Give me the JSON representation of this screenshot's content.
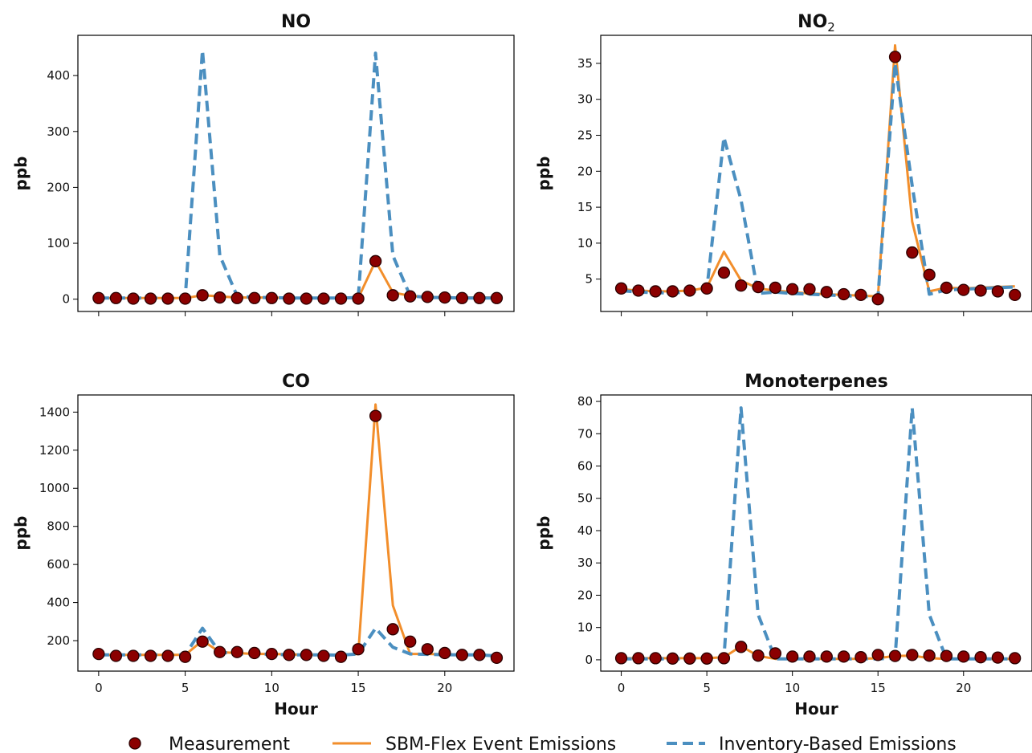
{
  "chart_data": {
    "type": "line",
    "x": [
      0,
      1,
      2,
      3,
      4,
      5,
      6,
      7,
      8,
      9,
      10,
      11,
      12,
      13,
      14,
      15,
      16,
      17,
      18,
      19,
      20,
      21,
      22,
      23
    ],
    "legend": {
      "placement": "bottom-center",
      "entries": [
        {
          "label": "Measurement",
          "style": "markers",
          "color": "#8b0000",
          "edge_color": "#2a0000"
        },
        {
          "label": "SBM-Flex Event Emissions",
          "style": "solid",
          "color": "#f28e2b"
        },
        {
          "label": "Inventory-Based Emissions",
          "style": "dashed",
          "color": "#4b8fc0"
        }
      ]
    },
    "panels": [
      {
        "title": "NO",
        "title_subscript": "",
        "xlabel": "",
        "ylabel": "ppb",
        "xlim": [
          -1.2,
          24
        ],
        "xticks": [
          0,
          5,
          10,
          15,
          20
        ],
        "show_xtick_labels": false,
        "ylim": [
          -22,
          472
        ],
        "yticks": [
          0,
          100,
          200,
          300,
          400
        ],
        "series": {
          "measurement": [
            2,
            2,
            1,
            1,
            1,
            1,
            7,
            3,
            2,
            2,
            2,
            1,
            1,
            1,
            1,
            1,
            68,
            7,
            5,
            4,
            3,
            2,
            2,
            2
          ],
          "sbm": [
            2,
            2,
            2,
            2,
            2,
            2,
            7,
            5,
            3,
            3,
            3,
            2,
            2,
            2,
            2,
            2,
            68,
            12,
            6,
            4,
            3,
            3,
            3,
            3
          ],
          "inventory": [
            2,
            2,
            2,
            2,
            2,
            2,
            445,
            78,
            6,
            3,
            3,
            2,
            2,
            2,
            2,
            3,
            440,
            78,
            6,
            3,
            3,
            2,
            2,
            2
          ]
        }
      },
      {
        "title": "NO",
        "title_subscript": "2",
        "xlabel": "",
        "ylabel": "ppb",
        "xlim": [
          -1.2,
          24
        ],
        "xticks": [
          0,
          5,
          10,
          15,
          20
        ],
        "show_xtick_labels": false,
        "ylim": [
          0.5,
          38.9
        ],
        "yticks": [
          5,
          10,
          15,
          20,
          25,
          30,
          35
        ],
        "series": {
          "measurement": [
            3.7,
            3.4,
            3.3,
            3.3,
            3.4,
            3.7,
            5.9,
            4.1,
            3.9,
            3.8,
            3.6,
            3.6,
            3.2,
            2.9,
            2.8,
            2.2,
            35.9,
            8.7,
            5.6,
            3.8,
            3.5,
            3.4,
            3.3,
            2.8
          ],
          "sbm": [
            3.6,
            3.4,
            3.3,
            3.3,
            3.4,
            3.8,
            8.8,
            4.8,
            3.7,
            3.4,
            3.2,
            3.0,
            2.9,
            2.8,
            2.7,
            2.6,
            37.5,
            13.0,
            3.3,
            3.8,
            3.7,
            3.8,
            3.9,
            4.0
          ],
          "inventory": [
            3.4,
            3.2,
            3.1,
            3.1,
            3.2,
            3.6,
            24.7,
            16.0,
            3.0,
            3.2,
            3.0,
            2.9,
            2.8,
            2.7,
            2.6,
            2.5,
            35.0,
            18.0,
            2.9,
            3.5,
            3.6,
            3.7,
            3.8,
            3.9
          ]
        }
      },
      {
        "title": "CO",
        "title_subscript": "",
        "xlabel": "Hour",
        "ylabel": "ppb",
        "xlim": [
          -1.2,
          24
        ],
        "xticks": [
          0,
          5,
          10,
          15,
          20
        ],
        "show_xtick_labels": true,
        "ylim": [
          40,
          1490
        ],
        "yticks": [
          200,
          400,
          600,
          800,
          1000,
          1200,
          1400
        ],
        "series": {
          "measurement": [
            130,
            120,
            120,
            120,
            120,
            115,
            195,
            140,
            140,
            135,
            130,
            125,
            125,
            120,
            115,
            155,
            1380,
            260,
            195,
            155,
            135,
            125,
            125,
            110
          ],
          "sbm": [
            125,
            125,
            125,
            125,
            125,
            125,
            200,
            140,
            135,
            130,
            130,
            128,
            126,
            125,
            125,
            130,
            1440,
            385,
            130,
            130,
            128,
            126,
            125,
            120
          ],
          "inventory": [
            125,
            125,
            125,
            125,
            125,
            125,
            265,
            140,
            130,
            130,
            128,
            126,
            125,
            125,
            124,
            130,
            265,
            165,
            130,
            128,
            126,
            125,
            125,
            120
          ]
        }
      },
      {
        "title": "Monoterpenes",
        "title_subscript": "",
        "xlabel": "Hour",
        "ylabel": "ppb",
        "xlim": [
          -1.2,
          24
        ],
        "xticks": [
          0,
          5,
          10,
          15,
          20
        ],
        "show_xtick_labels": true,
        "ylim": [
          -3.5,
          82
        ],
        "yticks": [
          0,
          10,
          20,
          30,
          40,
          50,
          60,
          70,
          80
        ],
        "series": {
          "measurement": [
            0.5,
            0.5,
            0.5,
            0.4,
            0.4,
            0.4,
            0.5,
            4.0,
            1.3,
            2.0,
            1.0,
            1.0,
            1.0,
            1.0,
            0.8,
            1.5,
            1.2,
            1.5,
            1.3,
            1.2,
            1.0,
            0.8,
            0.7,
            0.5
          ],
          "sbm": [
            0.5,
            0.5,
            0.5,
            0.5,
            0.5,
            0.5,
            0.8,
            4.2,
            1.2,
            0.3,
            0.3,
            0.3,
            0.3,
            0.3,
            0.3,
            0.5,
            1.2,
            1.3,
            0.5,
            0.3,
            0.3,
            0.3,
            0.3,
            0.3
          ],
          "inventory": [
            0.3,
            0.3,
            0.3,
            0.3,
            0.3,
            0.3,
            0.5,
            78,
            14,
            0.3,
            0.3,
            0.3,
            0.3,
            0.3,
            0.3,
            0.3,
            0.5,
            78,
            14,
            0.3,
            0.3,
            0.3,
            0.3,
            0.3
          ]
        }
      }
    ]
  }
}
